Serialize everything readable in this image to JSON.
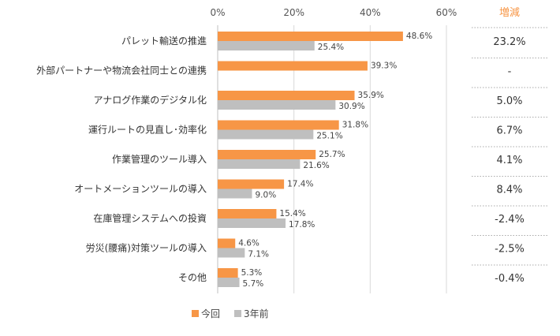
{
  "chart_data": {
    "type": "bar",
    "orientation": "horizontal",
    "xlim": [
      0,
      60
    ],
    "x_ticks": [
      "0%",
      "20%",
      "40%",
      "60%"
    ],
    "grid": true,
    "legend_position": "bottom",
    "categories": [
      "パレット輸送の推進",
      "外部パートナーや物流会社同士との連携",
      "アナログ作業のデジタル化",
      "運行ルートの見直し･効率化",
      "作業管理のツール導入",
      "オートメーションツールの導入",
      "在庫管理システムへの投資",
      "労災(腰痛)対策ツールの導入",
      "その他"
    ],
    "series": [
      {
        "name": "今回",
        "color": "#f79646",
        "values": [
          48.6,
          39.3,
          35.9,
          31.8,
          25.7,
          17.4,
          15.4,
          4.6,
          5.3
        ],
        "labels": [
          "48.6%",
          "39.3%",
          "35.9%",
          "31.8%",
          "25.7%",
          "17.4%",
          "15.4%",
          "4.6%",
          "5.3%"
        ]
      },
      {
        "name": "3年前",
        "color": "#bfbfbf",
        "values": [
          25.4,
          null,
          30.9,
          25.1,
          21.6,
          9.0,
          17.8,
          7.1,
          5.7
        ],
        "labels": [
          "25.4%",
          "",
          "30.9%",
          "25.1%",
          "21.6%",
          "9.0%",
          "17.8%",
          "7.1%",
          "5.7%"
        ]
      }
    ],
    "diff_header": "増減",
    "diff_header_color": "#f79646",
    "diff_values": [
      "23.2%",
      "-",
      "5.0%",
      "6.7%",
      "4.1%",
      "8.4%",
      "-2.4%",
      "-2.5%",
      "-0.4%"
    ]
  }
}
